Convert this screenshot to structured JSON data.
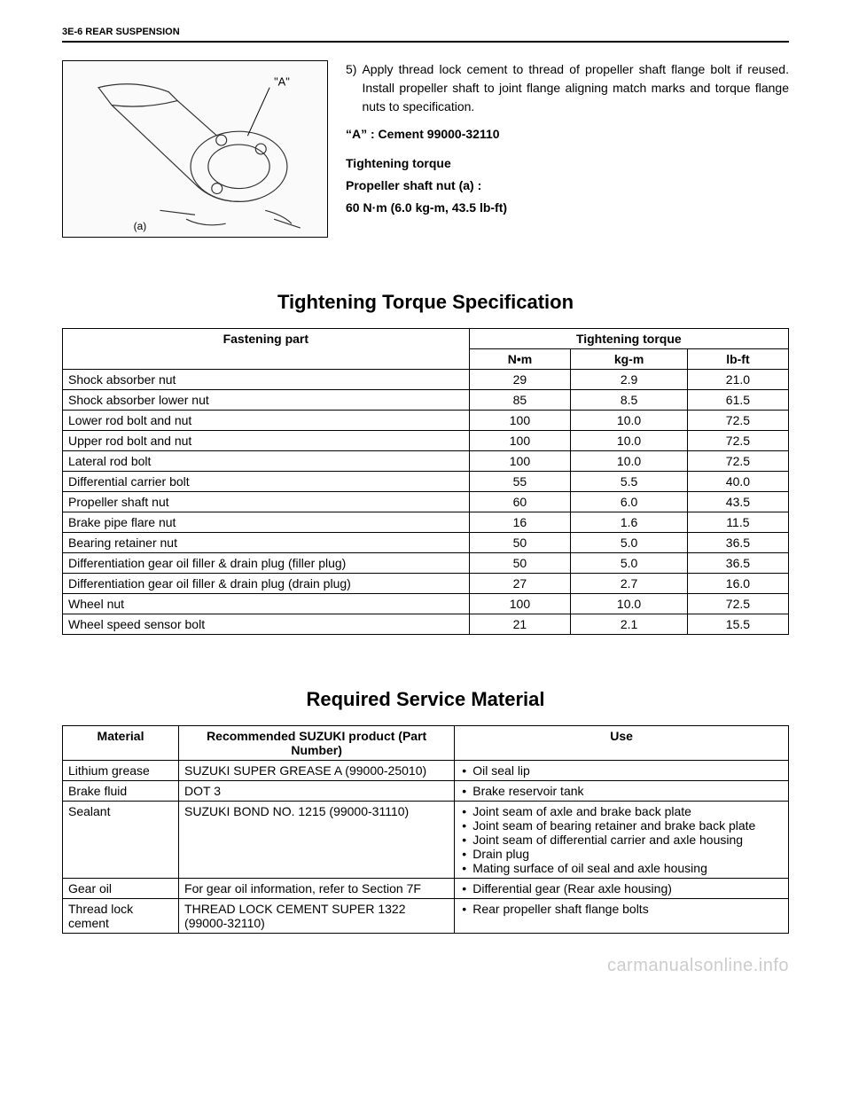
{
  "header": "3E-6 REAR SUSPENSION",
  "step": {
    "num": "5)",
    "text": "Apply thread lock cement to thread of propeller shaft flange bolt if reused. Install propeller shaft to joint flange aligning match marks and torque flange nuts to specification."
  },
  "cement": "“A” : Cement 99000-32110",
  "torque_label": "Tightening torque",
  "torque_part": "Propeller shaft nut (a) :",
  "torque_value": "60 N·m (6.0 kg-m, 43.5 lb-ft)",
  "diagram": {
    "label_a": "\"A\"",
    "label_bolt": "(a)"
  },
  "torque_section": {
    "heading": "Tightening Torque Specification",
    "cols": {
      "fastening": "Fastening part",
      "group": "Tightening torque",
      "nm": "N•m",
      "kgm": "kg-m",
      "lbft": "lb-ft"
    },
    "rows": [
      {
        "name": "Shock absorber nut",
        "nm": "29",
        "kgm": "2.9",
        "lbft": "21.0"
      },
      {
        "name": "Shock absorber lower nut",
        "nm": "85",
        "kgm": "8.5",
        "lbft": "61.5"
      },
      {
        "name": "Lower rod bolt and nut",
        "nm": "100",
        "kgm": "10.0",
        "lbft": "72.5"
      },
      {
        "name": "Upper rod bolt and nut",
        "nm": "100",
        "kgm": "10.0",
        "lbft": "72.5"
      },
      {
        "name": "Lateral rod bolt",
        "nm": "100",
        "kgm": "10.0",
        "lbft": "72.5"
      },
      {
        "name": "Differential carrier bolt",
        "nm": "55",
        "kgm": "5.5",
        "lbft": "40.0"
      },
      {
        "name": "Propeller shaft nut",
        "nm": "60",
        "kgm": "6.0",
        "lbft": "43.5"
      },
      {
        "name": "Brake pipe flare nut",
        "nm": "16",
        "kgm": "1.6",
        "lbft": "11.5"
      },
      {
        "name": "Bearing retainer nut",
        "nm": "50",
        "kgm": "5.0",
        "lbft": "36.5"
      },
      {
        "name": "Differentiation gear oil filler & drain plug (filler plug)",
        "nm": "50",
        "kgm": "5.0",
        "lbft": "36.5"
      },
      {
        "name": "Differentiation gear oil filler & drain plug (drain plug)",
        "nm": "27",
        "kgm": "2.7",
        "lbft": "16.0"
      },
      {
        "name": "Wheel nut",
        "nm": "100",
        "kgm": "10.0",
        "lbft": "72.5"
      },
      {
        "name": "Wheel speed sensor bolt",
        "nm": "21",
        "kgm": "2.1",
        "lbft": "15.5"
      }
    ]
  },
  "material_section": {
    "heading": "Required Service Material",
    "cols": {
      "material": "Material",
      "product": "Recommended SUZUKI product (Part Number)",
      "use": "Use"
    },
    "rows": [
      {
        "material": "Lithium grease",
        "product": "SUZUKI SUPER GREASE A (99000-25010)",
        "uses": [
          "Oil seal lip"
        ]
      },
      {
        "material": "Brake fluid",
        "product": "DOT 3",
        "uses": [
          "Brake reservoir tank"
        ]
      },
      {
        "material": "Sealant",
        "product": "SUZUKI BOND NO. 1215 (99000-31110)",
        "uses": [
          "Joint seam of axle and brake back plate",
          "Joint seam of bearing retainer and brake back plate",
          "Joint seam of differential carrier and axle housing",
          "Drain plug",
          "Mating surface of oil seal and axle housing"
        ]
      },
      {
        "material": "Gear oil",
        "product": "For gear oil information, refer to Section 7F",
        "uses": [
          "Differential gear (Rear axle housing)"
        ]
      },
      {
        "material": "Thread lock cement",
        "product": "THREAD LOCK CEMENT SUPER 1322 (99000-32110)",
        "uses": [
          "Rear propeller shaft flange bolts"
        ]
      }
    ]
  },
  "watermark": "carmanualsonline.info"
}
